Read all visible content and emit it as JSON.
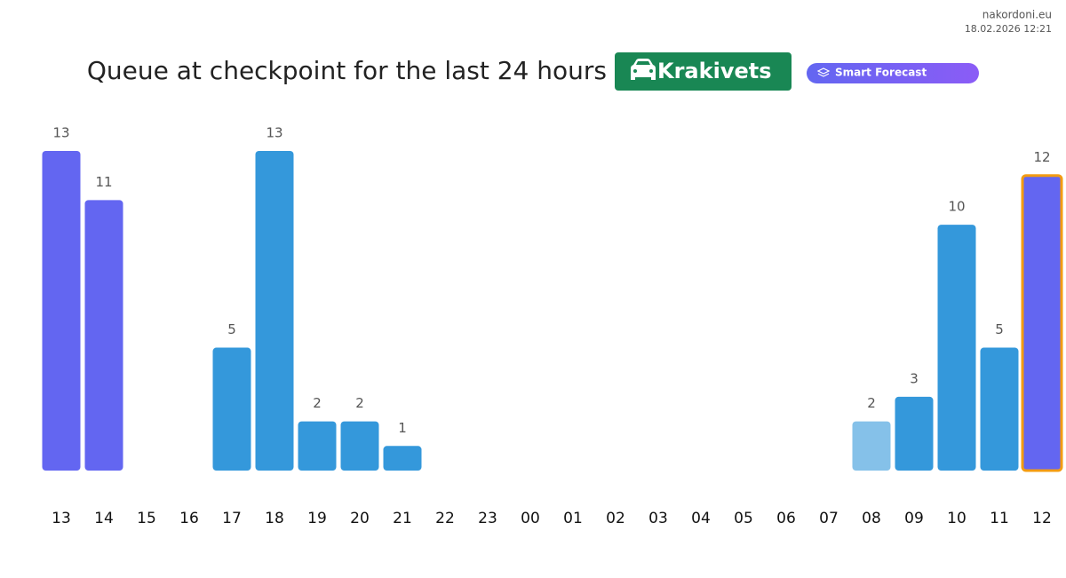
{
  "site": "nakordoni.eu",
  "timestamp": "18.02.2026 12:21",
  "title": "Queue at checkpoint for the last 24 hours",
  "checkpoint": "Krakivets",
  "forecast_badge": "Smart Forecast",
  "chart_data": {
    "type": "bar",
    "categories": [
      "13",
      "14",
      "15",
      "16",
      "17",
      "18",
      "19",
      "20",
      "21",
      "22",
      "23",
      "00",
      "01",
      "02",
      "03",
      "04",
      "05",
      "06",
      "07",
      "08",
      "09",
      "10",
      "11",
      "12"
    ],
    "values": [
      13,
      11,
      null,
      null,
      5,
      13,
      2,
      2,
      1,
      null,
      null,
      null,
      null,
      null,
      null,
      null,
      null,
      null,
      null,
      2,
      3,
      10,
      5,
      12
    ],
    "colors": [
      "#6366f1",
      "#6366f1",
      null,
      null,
      "#3498db",
      "#3498db",
      "#3498db",
      "#3498db",
      "#3498db",
      null,
      null,
      null,
      null,
      null,
      null,
      null,
      null,
      null,
      null,
      "#85c1e9",
      "#3498db",
      "#3498db",
      "#3498db",
      "#6366f1"
    ],
    "highlight": {
      "category": "12",
      "color": "#f39c12"
    },
    "ylim": [
      0,
      13
    ]
  }
}
